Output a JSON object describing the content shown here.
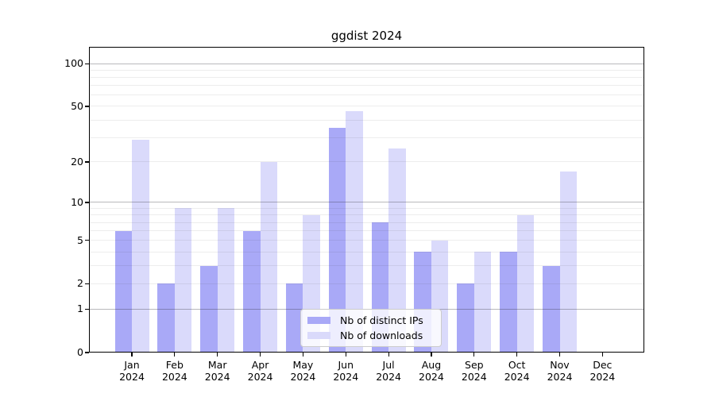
{
  "chart_data": {
    "type": "bar",
    "title": "ggdist 2024",
    "categories": [
      "Jan 2024",
      "Feb 2024",
      "Mar 2024",
      "Apr 2024",
      "May 2024",
      "Jun 2024",
      "Jul 2024",
      "Aug 2024",
      "Sep 2024",
      "Oct 2024",
      "Nov 2024",
      "Dec 2024"
    ],
    "months": [
      "Jan",
      "Feb",
      "Mar",
      "Apr",
      "May",
      "Jun",
      "Jul",
      "Aug",
      "Sep",
      "Oct",
      "Nov",
      "Dec"
    ],
    "year": "2024",
    "series": [
      {
        "name": "Nb of distinct IPs",
        "color": "#a9a9f7",
        "values": [
          6,
          2,
          3,
          6,
          2,
          35,
          7,
          4,
          2,
          4,
          3,
          0
        ]
      },
      {
        "name": "Nb of downloads",
        "color": "#dadafb",
        "values": [
          29,
          9,
          9,
          20,
          8,
          46,
          25,
          5,
          4,
          8,
          17,
          0
        ]
      }
    ],
    "xlabel": "",
    "ylabel": "",
    "yscale": "log1p",
    "ylim": [
      0,
      131
    ],
    "yticks": [
      0,
      1,
      2,
      5,
      10,
      20,
      50,
      100
    ],
    "minor_yticks": [
      3,
      4,
      6,
      7,
      8,
      9,
      30,
      40,
      60,
      70,
      80,
      90
    ],
    "major_grid_values": [
      1,
      10,
      100
    ],
    "grid": "on",
    "legend_position": "lower center"
  }
}
